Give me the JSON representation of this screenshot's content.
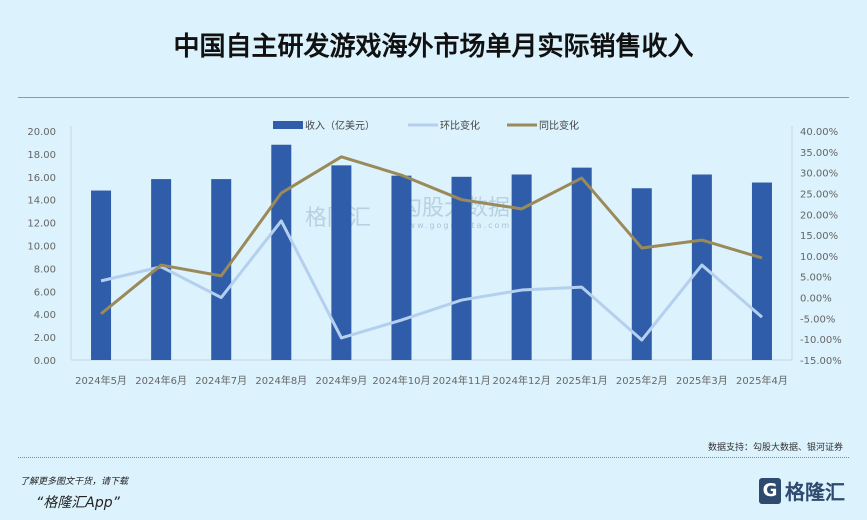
{
  "chart_data": {
    "type": "bar+line",
    "title": "中国自主研发游戏海外市场单月实际销售收入",
    "categories": [
      "2024年5月",
      "2024年6月",
      "2024年7月",
      "2024年8月",
      "2024年9月",
      "2024年10月",
      "2024年11月",
      "2024年12月",
      "2025年1月",
      "2025年2月",
      "2025年3月",
      "2025年4月"
    ],
    "series": [
      {
        "name": "收入（亿美元）",
        "type": "bar",
        "axis": "left",
        "color": "#2f5daa",
        "values": [
          14.8,
          15.8,
          15.8,
          18.8,
          17.0,
          16.1,
          16.0,
          16.2,
          16.8,
          15.0,
          16.2,
          15.5
        ]
      },
      {
        "name": "环比变化",
        "type": "line",
        "axis": "right",
        "color": "#b4d0ee",
        "values": [
          4.0,
          7.4,
          0.0,
          18.4,
          -9.7,
          -5.4,
          -0.6,
          1.8,
          2.5,
          -10.2,
          7.8,
          -4.7
        ]
      },
      {
        "name": "同比变化",
        "type": "line",
        "axis": "right",
        "color": "#9a8a5a",
        "values": [
          -3.9,
          7.8,
          5.2,
          25.1,
          33.8,
          29.4,
          23.5,
          21.3,
          28.7,
          11.9,
          13.8,
          9.5
        ]
      }
    ],
    "ylim_left": [
      0,
      20
    ],
    "yticks_left": [
      "0.00",
      "2.00",
      "4.00",
      "6.00",
      "8.00",
      "10.00",
      "12.00",
      "14.00",
      "16.00",
      "18.00",
      "20.00"
    ],
    "ylim_right": [
      -15,
      40
    ],
    "yticks_right": [
      "-15.00%",
      "-10.00%",
      "-5.00%",
      "0.00%",
      "5.00%",
      "10.00%",
      "15.00%",
      "20.00%",
      "25.00%",
      "30.00%",
      "35.00%",
      "40.00%"
    ],
    "legend": "top-center"
  },
  "source": "数据支持：勾股大数据、银河证券",
  "footer": {
    "line1": "了解更多图文干货，请下载",
    "line2": "“格隆汇App”",
    "logo": "格隆汇",
    "logo_letter": "G"
  },
  "watermark": {
    "left": "格隆汇",
    "right": "勾股大数据",
    "url": "www.gogudata.com"
  }
}
